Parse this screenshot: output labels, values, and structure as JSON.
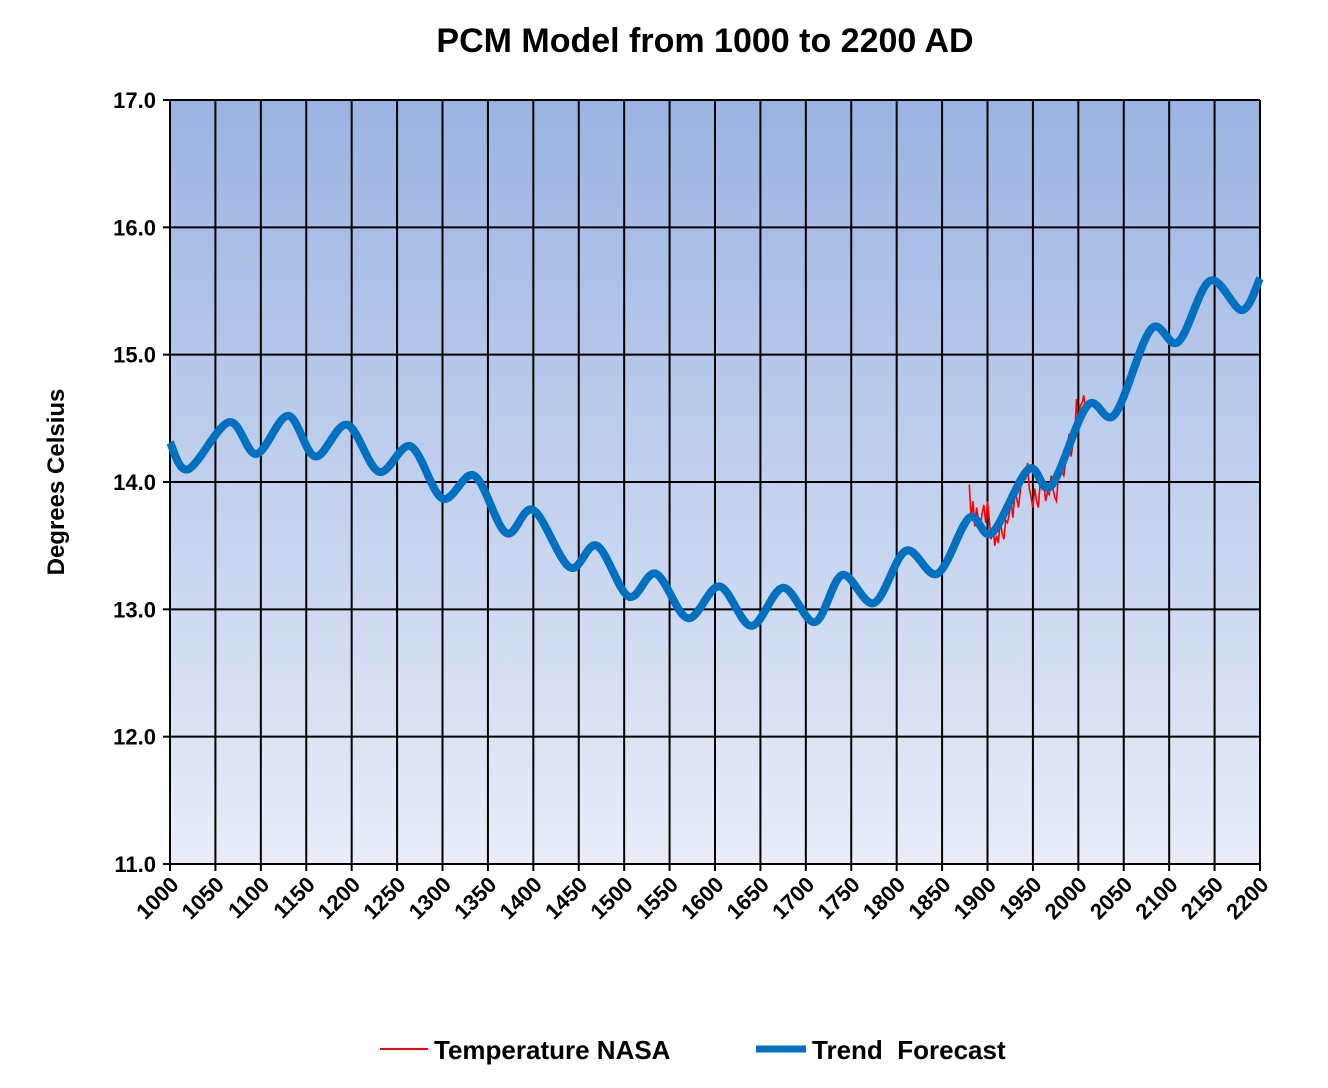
{
  "chart_data": {
    "type": "line",
    "title": "PCM Model from 1000 to 2200 AD",
    "xlabel": "",
    "ylabel": "Degrees Celsius",
    "xlim": [
      1000,
      2200
    ],
    "ylim": [
      11.0,
      17.0
    ],
    "xticks": [
      "1000",
      "1050",
      "1100",
      "1150",
      "1200",
      "1250",
      "1300",
      "1350",
      "1400",
      "1450",
      "1500",
      "1550",
      "1600",
      "1650",
      "1700",
      "1750",
      "1800",
      "1850",
      "1900",
      "1950",
      "2000",
      "2050",
      "2100",
      "2150",
      "2200"
    ],
    "yticks": [
      "11.0",
      "12.0",
      "13.0",
      "14.0",
      "15.0",
      "16.0",
      "17.0"
    ],
    "grid": true,
    "legend_position": "bottom",
    "background": "vertical gradient from #9bb3e2 (top) to #e8edf8 (bottom)",
    "series": [
      {
        "name": "Temperature NASA",
        "color": "#ff0000",
        "x": [
          1880,
          1882,
          1884,
          1886,
          1888,
          1890,
          1892,
          1894,
          1896,
          1898,
          1900,
          1902,
          1904,
          1906,
          1908,
          1910,
          1912,
          1914,
          1916,
          1918,
          1920,
          1922,
          1924,
          1926,
          1928,
          1930,
          1932,
          1934,
          1936,
          1938,
          1940,
          1942,
          1944,
          1946,
          1948,
          1950,
          1952,
          1954,
          1956,
          1958,
          1960,
          1962,
          1964,
          1966,
          1968,
          1970,
          1972,
          1974,
          1976,
          1978,
          1980,
          1982,
          1984,
          1986,
          1988,
          1990,
          1992,
          1994,
          1996,
          1998,
          2000,
          2002,
          2004,
          2006,
          2008
        ],
        "y": [
          13.98,
          13.72,
          13.85,
          13.65,
          13.8,
          13.7,
          13.62,
          13.75,
          13.82,
          13.68,
          13.85,
          13.7,
          13.55,
          13.65,
          13.5,
          13.58,
          13.52,
          13.7,
          13.6,
          13.55,
          13.7,
          13.68,
          13.75,
          13.85,
          13.72,
          13.9,
          13.88,
          13.8,
          13.92,
          14.05,
          14.1,
          14.02,
          14.15,
          13.95,
          13.88,
          13.8,
          13.95,
          13.85,
          13.8,
          14.0,
          13.95,
          14.0,
          13.85,
          13.92,
          13.9,
          14.05,
          13.95,
          13.88,
          13.85,
          14.05,
          14.15,
          14.08,
          14.05,
          14.15,
          14.3,
          14.38,
          14.2,
          14.3,
          14.35,
          14.65,
          14.45,
          14.6,
          14.62,
          14.68,
          14.55
        ]
      },
      {
        "name": "Trend  Forecast",
        "color": "#0070c0",
        "x": [
          1000,
          1020,
          1065,
          1095,
          1130,
          1160,
          1195,
          1230,
          1265,
          1300,
          1335,
          1370,
          1400,
          1440,
          1470,
          1505,
          1535,
          1570,
          1605,
          1640,
          1675,
          1710,
          1740,
          1775,
          1810,
          1845,
          1880,
          1905,
          1945,
          1970,
          2010,
          2040,
          2080,
          2110,
          2145,
          2180,
          2200
        ],
        "y": [
          14.31,
          14.1,
          14.47,
          14.22,
          14.52,
          14.2,
          14.45,
          14.08,
          14.28,
          13.87,
          14.05,
          13.6,
          13.78,
          13.33,
          13.5,
          13.1,
          13.28,
          12.93,
          13.18,
          12.87,
          13.17,
          12.9,
          13.27,
          13.05,
          13.46,
          13.28,
          13.72,
          13.6,
          14.1,
          13.97,
          14.6,
          14.53,
          15.2,
          15.1,
          15.58,
          15.35,
          15.6
        ]
      }
    ]
  }
}
